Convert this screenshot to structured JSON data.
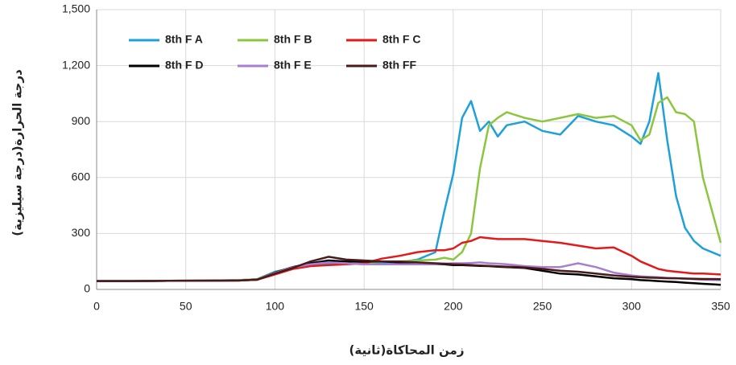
{
  "chart_data": {
    "type": "line",
    "xlabel": "زمن المحاكاة(ثانية)",
    "ylabel": "درجة الحرارة(درجة سيليزية)",
    "x": [
      0,
      20,
      40,
      60,
      80,
      90,
      100,
      110,
      120,
      130,
      140,
      150,
      160,
      170,
      180,
      190,
      195,
      200,
      205,
      210,
      215,
      220,
      225,
      230,
      240,
      250,
      260,
      270,
      280,
      290,
      300,
      305,
      310,
      315,
      320,
      325,
      330,
      335,
      340,
      350
    ],
    "series": [
      {
        "name": "8th F A",
        "color": "#1fa0d8",
        "values": [
          45,
          45,
          46,
          47,
          50,
          55,
          95,
          115,
          130,
          140,
          140,
          135,
          140,
          145,
          160,
          200,
          420,
          620,
          920,
          1010,
          850,
          900,
          820,
          880,
          900,
          850,
          830,
          930,
          900,
          880,
          820,
          780,
          900,
          1160,
          800,
          500,
          330,
          260,
          220,
          180
        ]
      },
      {
        "name": "8th F B",
        "color": "#8cc63f",
        "values": [
          45,
          45,
          46,
          47,
          50,
          55,
          90,
          120,
          130,
          150,
          145,
          140,
          150,
          150,
          155,
          160,
          170,
          160,
          200,
          300,
          650,
          880,
          920,
          950,
          920,
          900,
          920,
          940,
          920,
          930,
          880,
          800,
          830,
          1000,
          1030,
          950,
          940,
          900,
          600,
          250
        ]
      },
      {
        "name": "8th F C",
        "color": "#e31a1c",
        "values": [
          45,
          45,
          46,
          47,
          48,
          52,
          80,
          110,
          125,
          130,
          135,
          140,
          165,
          180,
          200,
          210,
          210,
          220,
          250,
          260,
          280,
          275,
          270,
          270,
          270,
          260,
          250,
          235,
          220,
          225,
          180,
          150,
          130,
          110,
          100,
          95,
          90,
          85,
          85,
          80
        ]
      },
      {
        "name": "8th F D",
        "color": "#000000",
        "values": [
          45,
          45,
          46,
          47,
          48,
          52,
          90,
          120,
          140,
          155,
          150,
          150,
          150,
          145,
          140,
          135,
          135,
          130,
          130,
          128,
          126,
          125,
          122,
          120,
          115,
          100,
          85,
          80,
          70,
          60,
          55,
          50,
          48,
          45,
          42,
          40,
          36,
          33,
          30,
          25
        ]
      },
      {
        "name": "8th F E",
        "color": "#a77fd1",
        "values": [
          45,
          45,
          46,
          47,
          48,
          52,
          88,
          118,
          135,
          145,
          140,
          135,
          135,
          135,
          135,
          135,
          138,
          140,
          140,
          142,
          145,
          140,
          138,
          135,
          125,
          120,
          120,
          140,
          120,
          90,
          75,
          70,
          68,
          65,
          62,
          60,
          58,
          55,
          52,
          50
        ]
      },
      {
        "name": "8th FF",
        "color": "#4a1a1a",
        "values": [
          45,
          45,
          46,
          47,
          48,
          52,
          85,
          115,
          150,
          175,
          160,
          155,
          150,
          150,
          145,
          140,
          138,
          135,
          133,
          130,
          128,
          126,
          124,
          122,
          118,
          110,
          100,
          95,
          85,
          75,
          68,
          65,
          63,
          62,
          60,
          60,
          58,
          57,
          56,
          55
        ]
      }
    ],
    "xlim": [
      0,
      350
    ],
    "xticks": [
      0,
      50,
      100,
      150,
      200,
      250,
      300,
      350
    ],
    "ylim": [
      0,
      1500
    ],
    "yticks": [
      0,
      300,
      600,
      900,
      {
        "value": 1200,
        "label": "1,200"
      },
      {
        "value": 1500,
        "label": "1,500"
      }
    ],
    "grid": true
  }
}
